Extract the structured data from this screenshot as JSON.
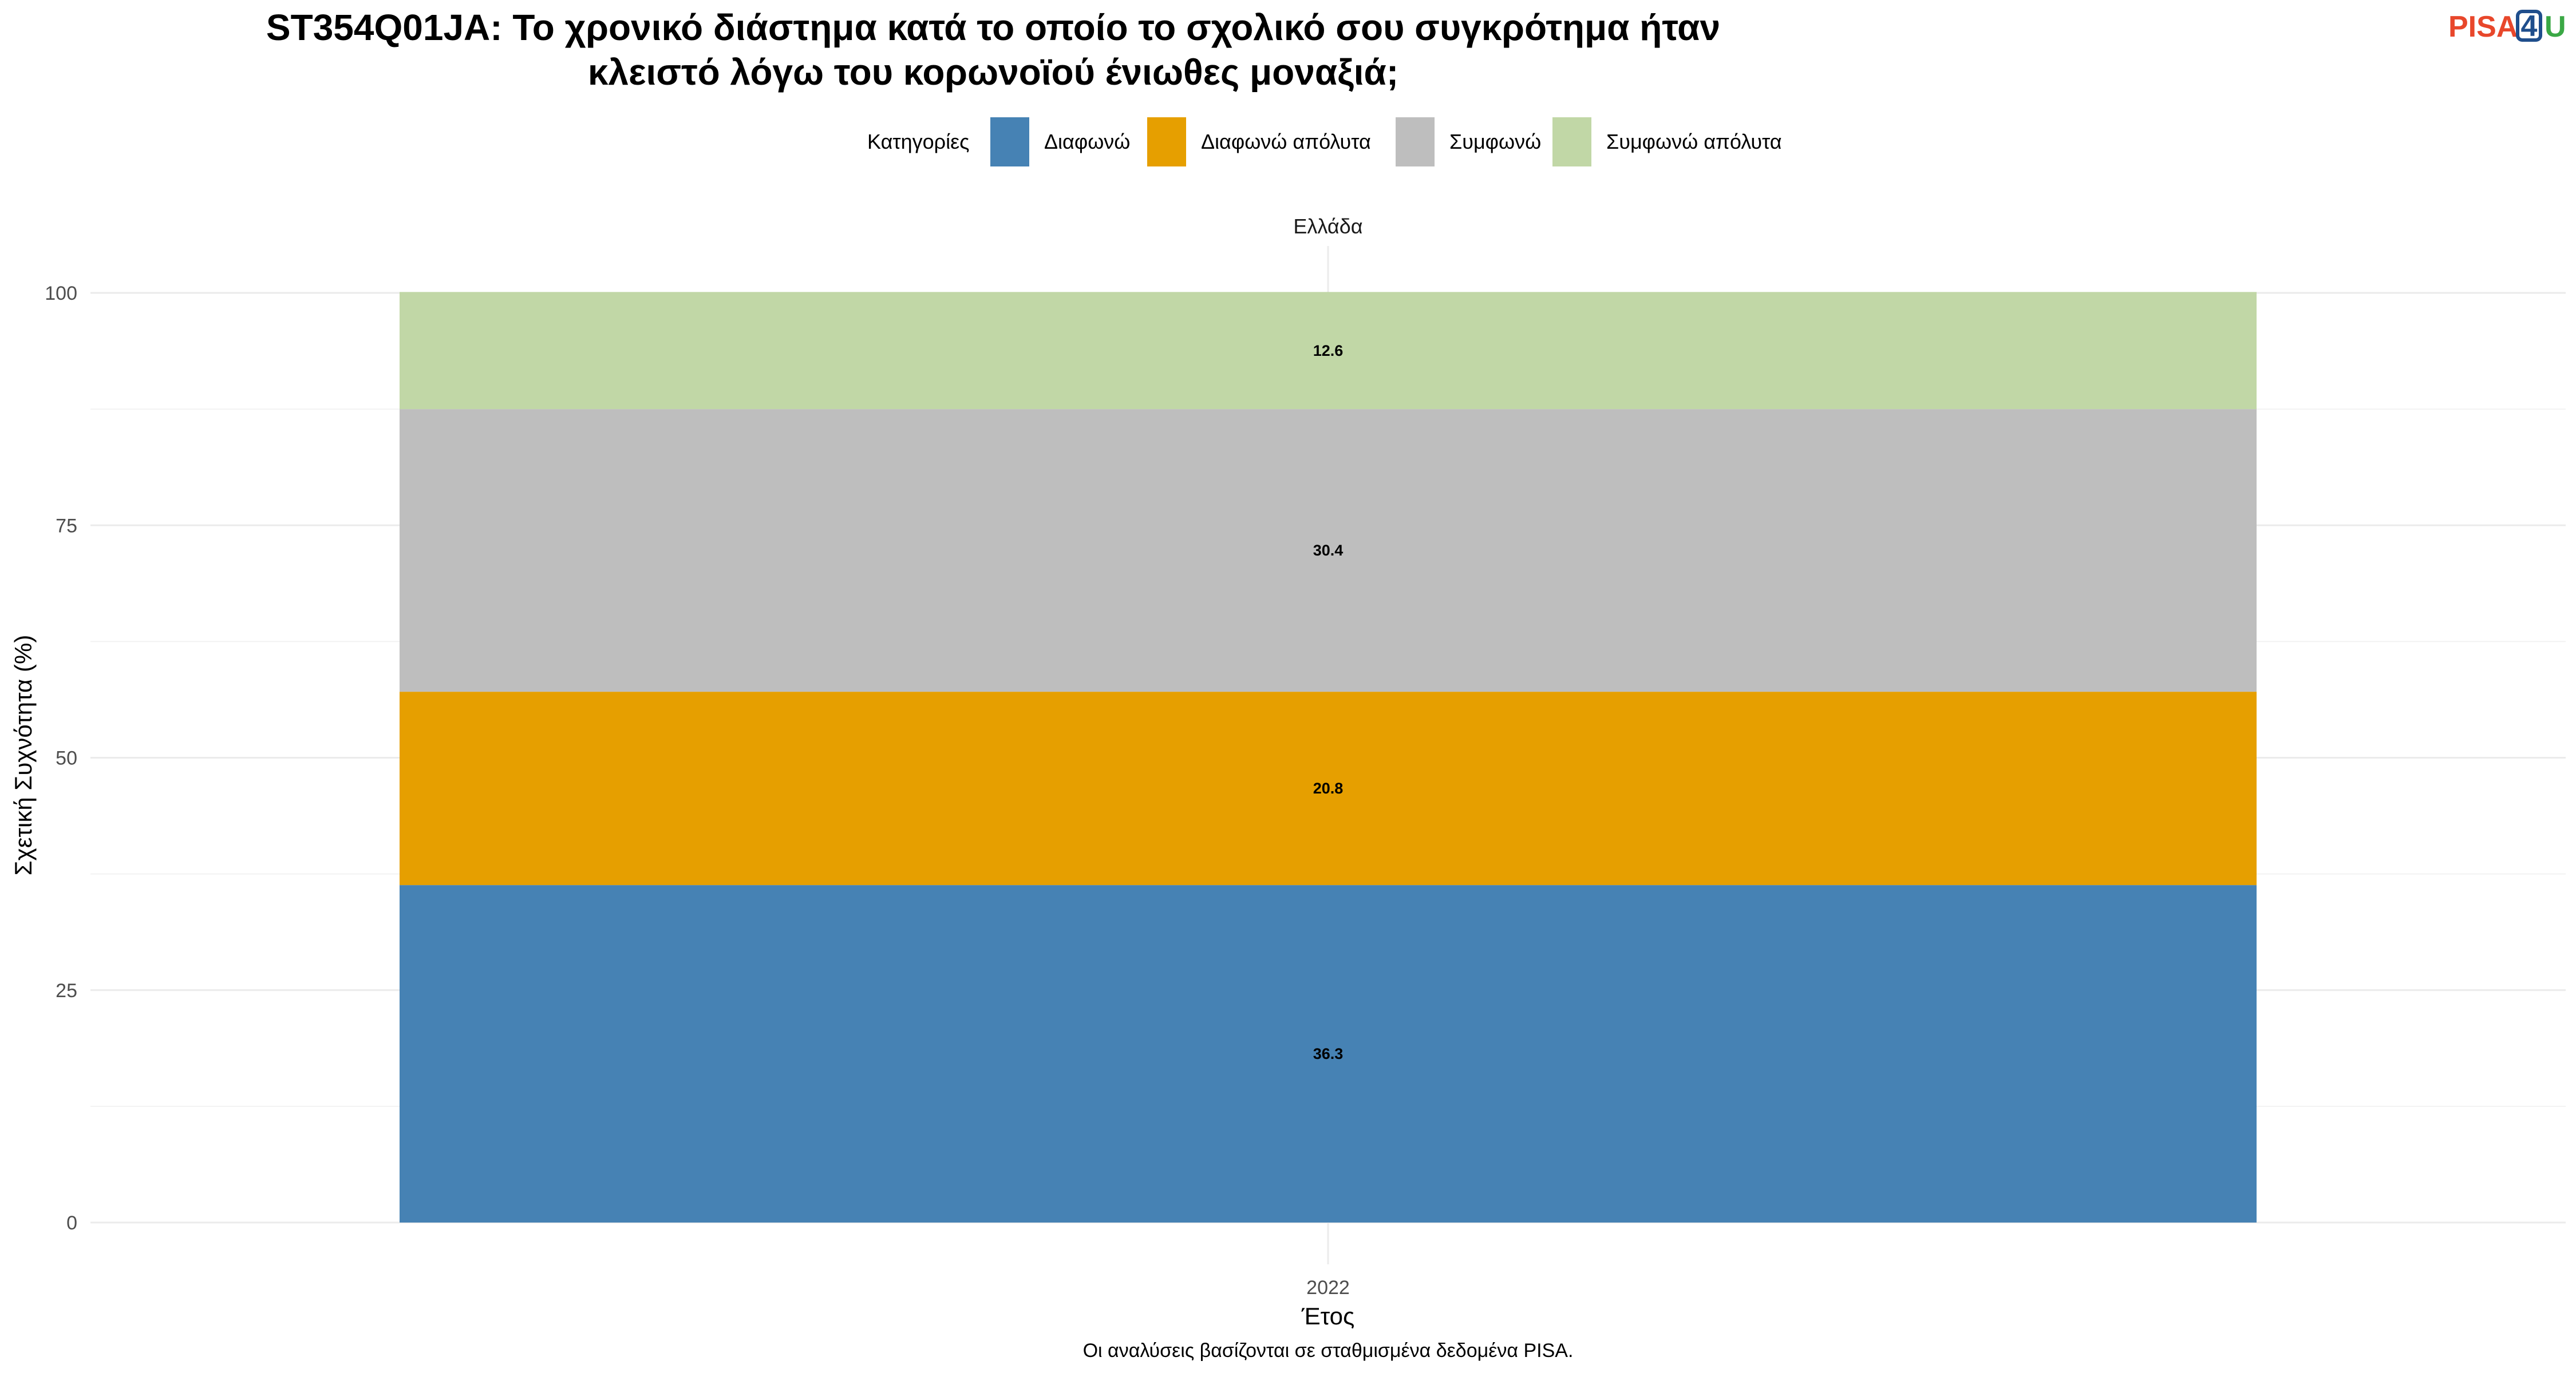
{
  "title_line1": "ST354Q01JA: Το χρονικό διάστημα κατά το οποίο το σχολικό σου συγκρότημα ήταν",
  "title_line2": "κλειστό λόγω του κορωνοϊού ένιωθες μοναξιά;",
  "logo": {
    "text_pisa": "PISA",
    "text_four": "4",
    "text_u": "U",
    "color_pisa": "#e8472b",
    "color_four": "#1f4e8c",
    "color_u": "#3aa845"
  },
  "caption": "Οι αναλύσεις βασίζονται σε σταθμισμένα δεδομένα PISA.",
  "chart_data": {
    "type": "bar",
    "stacked": true,
    "facet_label": "Ελλάδα",
    "categories": [
      "2022"
    ],
    "xlabel": "Έτος",
    "ylabel": "Σχετική Συχνότητα (%)",
    "ylim": [
      0,
      100
    ],
    "yticks": [
      0,
      25,
      50,
      75,
      100
    ],
    "grid": true,
    "legend_title": "Κατηγορίες",
    "legend_position": "top",
    "series": [
      {
        "name": "Διαφωνώ",
        "values": [
          36.3
        ],
        "labels": [
          "36.3"
        ],
        "color": "#4682b4"
      },
      {
        "name": "Διαφωνώ απόλυτα",
        "values": [
          20.8
        ],
        "labels": [
          "20.8"
        ],
        "color": "#e69f00"
      },
      {
        "name": "Συμφωνώ",
        "values": [
          30.4
        ],
        "labels": [
          "30.4"
        ],
        "color": "#bebebe"
      },
      {
        "name": "Συμφωνώ απόλυτα",
        "values": [
          12.6
        ],
        "labels": [
          "12.6"
        ],
        "color": "#c1d7a6"
      }
    ]
  }
}
